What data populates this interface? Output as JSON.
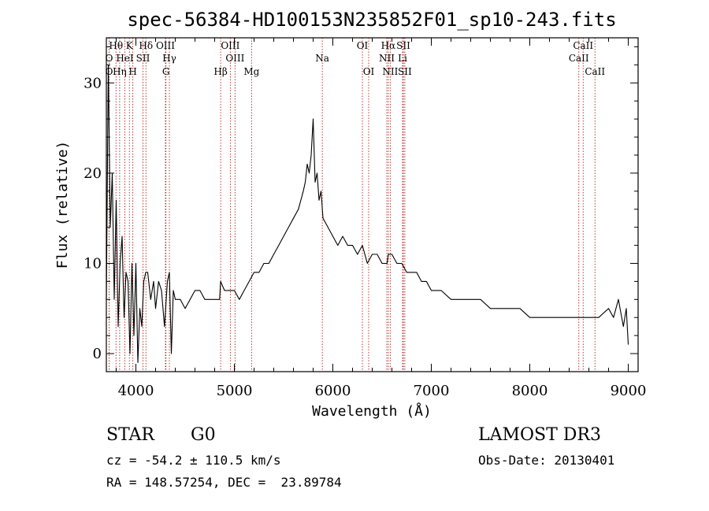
{
  "chart_data": {
    "type": "line",
    "title": "spec-56384-HD100153N235852F01_sp10-243.fits",
    "xlabel": "Wavelength (Å)",
    "ylabel": "Flux (relative)",
    "xlim": [
      3700,
      9100
    ],
    "ylim": [
      -2,
      35
    ],
    "x_ticks": [
      4000,
      5000,
      6000,
      7000,
      8000,
      9000
    ],
    "y_ticks": [
      0,
      10,
      20,
      30
    ],
    "grid": false,
    "line_color": "#000000",
    "marker_line_color": "#b22222",
    "series": [
      {
        "x": [
          3700,
          3720,
          3740,
          3760,
          3780,
          3800,
          3820,
          3840,
          3860,
          3880,
          3900,
          3920,
          3940,
          3960,
          3980,
          4000,
          4020,
          4040,
          4060,
          4080,
          4100,
          4120,
          4150,
          4180,
          4200,
          4230,
          4260,
          4290,
          4320,
          4340,
          4360,
          4380,
          4400,
          4450,
          4500,
          4550,
          4600,
          4650,
          4700,
          4750,
          4800,
          4850,
          4860,
          4900,
          4950,
          5000,
          5050,
          5100,
          5150,
          5200,
          5250,
          5300,
          5350,
          5400,
          5450,
          5500,
          5550,
          5600,
          5650,
          5700,
          5720,
          5740,
          5760,
          5780,
          5800,
          5820,
          5840,
          5860,
          5880,
          5900,
          5950,
          6000,
          6050,
          6100,
          6150,
          6200,
          6250,
          6300,
          6350,
          6400,
          6450,
          6500,
          6550,
          6563,
          6600,
          6650,
          6700,
          6750,
          6800,
          6850,
          6900,
          6950,
          7000,
          7100,
          7200,
          7300,
          7400,
          7500,
          7600,
          7700,
          7800,
          7900,
          8000,
          8100,
          8200,
          8300,
          8400,
          8500,
          8600,
          8700,
          8800,
          8850,
          8900,
          8950,
          8980,
          9000
        ],
        "y": [
          6,
          32,
          14,
          20,
          6,
          17,
          3,
          10,
          13,
          4,
          9,
          8,
          0,
          10,
          2,
          10,
          -1,
          5,
          3,
          8,
          9,
          9,
          6,
          8,
          5,
          8,
          7,
          3,
          8,
          9,
          0,
          7,
          6,
          6,
          5,
          6,
          7,
          7,
          6,
          6,
          6,
          6,
          8,
          7,
          7,
          7,
          6,
          7,
          8,
          9,
          9,
          10,
          10,
          11,
          12,
          13,
          14,
          15,
          16,
          18,
          19,
          21,
          20,
          22,
          26,
          19,
          20,
          17,
          18,
          15,
          14,
          13,
          12,
          13,
          12,
          12,
          11,
          12,
          10,
          11,
          11,
          10,
          10,
          11,
          11,
          10,
          10,
          9,
          9,
          9,
          8,
          8,
          7,
          7,
          6,
          6,
          6,
          6,
          5,
          5,
          5,
          5,
          4,
          4,
          4,
          4,
          4,
          4,
          4,
          4,
          5,
          4,
          6,
          3,
          5,
          1
        ]
      }
    ],
    "lines": [
      {
        "label": "Hθ",
        "x": 3798,
        "row": 1
      },
      {
        "label": "O",
        "x": 3728,
        "row": 2
      },
      {
        "label": "O",
        "x": 3728,
        "row": 3
      },
      {
        "label": "Hη",
        "x": 3835,
        "row": 3
      },
      {
        "label": "HeΙ",
        "x": 3888,
        "row": 2
      },
      {
        "label": "K",
        "x": 3934,
        "row": 1
      },
      {
        "label": "H",
        "x": 3969,
        "row": 3
      },
      {
        "label": "SII",
        "x": 4072,
        "row": 2
      },
      {
        "label": "Hδ",
        "x": 4102,
        "row": 1
      },
      {
        "label": "OIII",
        "x": 4300,
        "row": 1
      },
      {
        "label": "Hγ",
        "x": 4340,
        "row": 2
      },
      {
        "label": "G",
        "x": 4305,
        "row": 3
      },
      {
        "label": "OIII",
        "x": 4959,
        "row": 1
      },
      {
        "label": "OIII",
        "x": 5007,
        "row": 2
      },
      {
        "label": "Hβ",
        "x": 4861,
        "row": 3
      },
      {
        "label": "Mg",
        "x": 5175,
        "row": 3
      },
      {
        "label": "Na",
        "x": 5893,
        "row": 2
      },
      {
        "label": "OI",
        "x": 6300,
        "row": 1
      },
      {
        "label": "OI",
        "x": 6364,
        "row": 3
      },
      {
        "label": "Hα",
        "x": 6563,
        "row": 1
      },
      {
        "label": "SII",
        "x": 6716,
        "row": 1
      },
      {
        "label": "NII",
        "x": 6548,
        "row": 2
      },
      {
        "label": "Li",
        "x": 6708,
        "row": 2
      },
      {
        "label": "NII",
        "x": 6583,
        "row": 3
      },
      {
        "label": "SII",
        "x": 6731,
        "row": 3
      },
      {
        "label": "CaII",
        "x": 8542,
        "row": 1
      },
      {
        "label": "CaII",
        "x": 8498,
        "row": 2
      },
      {
        "label": "CaII",
        "x": 8662,
        "row": 3
      }
    ]
  },
  "info": {
    "class": "STAR",
    "subclass": "G0",
    "survey": "LAMOST DR3",
    "cz": "cz = -54.2 ± 110.5 km/s",
    "obs_date": "Obs-Date: 20130401",
    "coords": "RA = 148.57254, DEC =  23.89784"
  }
}
